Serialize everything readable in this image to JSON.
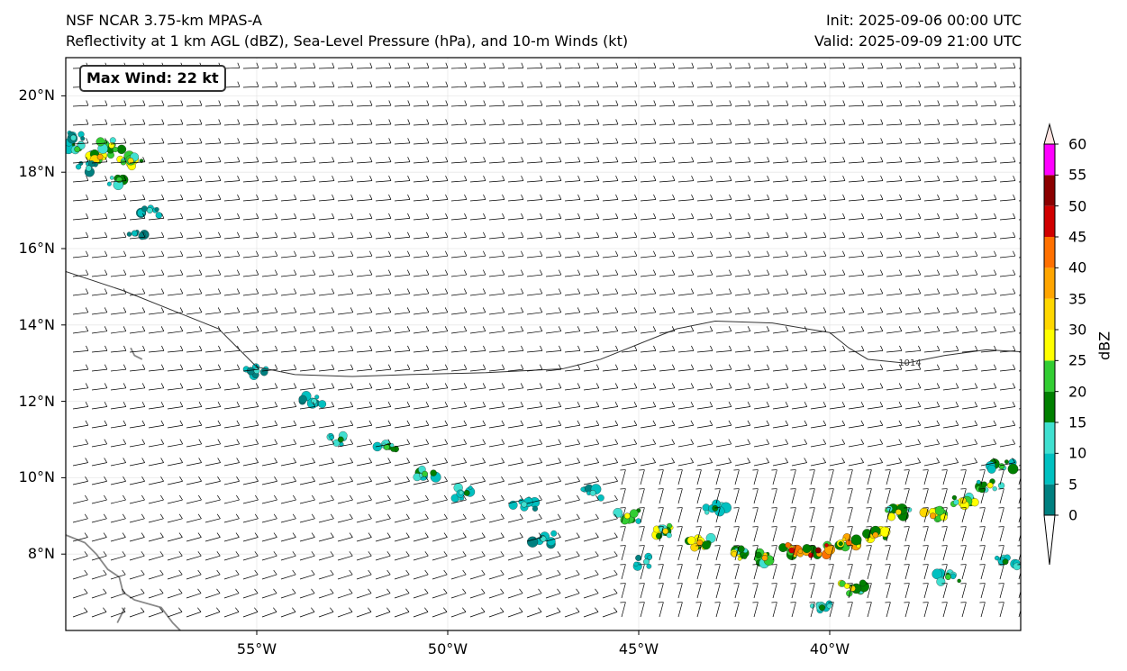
{
  "header": {
    "model": "NSF NCAR 3.75-km MPAS-A",
    "fields": "Reflectivity at 1 km AGL (dBZ), Sea-Level Pressure (hPa), and 10-m Winds (kt)",
    "init": "Init: 2025-09-06 00:00 UTC",
    "valid": "Valid: 2025-09-09 21:00 UTC"
  },
  "annotation": {
    "max_wind": "Max Wind: 22 kt"
  },
  "map": {
    "lon_range": [
      -60,
      -35
    ],
    "lat_range": [
      6,
      21
    ],
    "lat_ticks": [
      {
        "value": 8,
        "label": "8°N"
      },
      {
        "value": 10,
        "label": "10°N"
      },
      {
        "value": 12,
        "label": "12°N"
      },
      {
        "value": 14,
        "label": "14°N"
      },
      {
        "value": 16,
        "label": "16°N"
      },
      {
        "value": 18,
        "label": "18°N"
      },
      {
        "value": 20,
        "label": "20°N"
      }
    ],
    "lon_ticks": [
      {
        "value": -55,
        "label": "55°W"
      },
      {
        "value": -50,
        "label": "50°W"
      },
      {
        "value": -45,
        "label": "45°W"
      },
      {
        "value": -40,
        "label": "40°W"
      }
    ],
    "isobars": [
      {
        "label": "1014",
        "label_point": [
          -37.9,
          13.0
        ],
        "points": [
          [
            -60,
            15.4
          ],
          [
            -58.5,
            14.9
          ],
          [
            -57,
            14.3
          ],
          [
            -56,
            13.9
          ],
          [
            -55.4,
            13.3
          ],
          [
            -55,
            12.9
          ],
          [
            -54,
            12.7
          ],
          [
            -52.5,
            12.65
          ],
          [
            -51,
            12.7
          ],
          [
            -49,
            12.75
          ],
          [
            -47,
            12.85
          ],
          [
            -46,
            13.1
          ],
          [
            -45,
            13.5
          ],
          [
            -44,
            13.9
          ],
          [
            -43,
            14.1
          ],
          [
            -41.5,
            14.05
          ],
          [
            -40,
            13.8
          ],
          [
            -39.5,
            13.4
          ],
          [
            -39,
            13.1
          ],
          [
            -38,
            13.0
          ],
          [
            -37,
            13.2
          ],
          [
            -35.9,
            13.35
          ],
          [
            -35,
            13.3
          ]
        ]
      }
    ],
    "coastlines": [
      [
        [
          -60,
          8.5
        ],
        [
          -59.5,
          8.3
        ],
        [
          -59.2,
          8.0
        ],
        [
          -58.9,
          7.6
        ],
        [
          -58.6,
          7.4
        ],
        [
          -58.5,
          7.0
        ],
        [
          -58.2,
          6.8
        ],
        [
          -57.5,
          6.6
        ],
        [
          -57.2,
          6.2
        ],
        [
          -57.0,
          6.0
        ]
      ],
      [
        [
          -58.65,
          6.2
        ],
        [
          -58.45,
          6.6
        ]
      ],
      [
        [
          -58.3,
          13.4
        ],
        [
          -58.2,
          13.2
        ],
        [
          -58.0,
          13.1
        ]
      ]
    ]
  },
  "colorbar": {
    "label": "dBZ",
    "levels": [
      0,
      5,
      10,
      15,
      20,
      25,
      30,
      35,
      40,
      45,
      50,
      55,
      60
    ],
    "tick_labels": [
      "0",
      "5",
      "10",
      "15",
      "20",
      "25",
      "30",
      "35",
      "40",
      "45",
      "50",
      "55",
      "60"
    ],
    "colors": [
      "#008080",
      "#00c0c0",
      "#40e0d0",
      "#008000",
      "#32cd32",
      "#ffff00",
      "#ffd700",
      "#ffa500",
      "#ff7000",
      "#d00000",
      "#8b0000",
      "#ff00ff",
      "#ffe4e1"
    ]
  },
  "reflectivity_cells": [
    {
      "lon": -59.7,
      "lat": 18.6,
      "dbz": 20
    },
    {
      "lon": -59.1,
      "lat": 18.4,
      "dbz": 35
    },
    {
      "lon": -58.8,
      "lat": 18.7,
      "dbz": 25
    },
    {
      "lon": -59.4,
      "lat": 18.1,
      "dbz": 10
    },
    {
      "lon": -58.6,
      "lat": 17.8,
      "dbz": 20
    },
    {
      "lon": -58.3,
      "lat": 18.3,
      "dbz": 30
    },
    {
      "lon": -59.8,
      "lat": 18.9,
      "dbz": 10
    },
    {
      "lon": -57.8,
      "lat": 17.0,
      "dbz": 10
    },
    {
      "lon": -58.2,
      "lat": 16.4,
      "dbz": 5
    },
    {
      "lon": -55.0,
      "lat": 12.8,
      "dbz": 10
    },
    {
      "lon": -53.5,
      "lat": 12.0,
      "dbz": 10
    },
    {
      "lon": -52.8,
      "lat": 11.0,
      "dbz": 15
    },
    {
      "lon": -51.6,
      "lat": 10.8,
      "dbz": 20
    },
    {
      "lon": -50.6,
      "lat": 10.1,
      "dbz": 20
    },
    {
      "lon": -49.5,
      "lat": 9.6,
      "dbz": 15
    },
    {
      "lon": -48.0,
      "lat": 9.3,
      "dbz": 10
    },
    {
      "lon": -47.5,
      "lat": 8.4,
      "dbz": 10
    },
    {
      "lon": -46.2,
      "lat": 9.6,
      "dbz": 10
    },
    {
      "lon": -45.3,
      "lat": 9.0,
      "dbz": 25
    },
    {
      "lon": -44.3,
      "lat": 8.6,
      "dbz": 30
    },
    {
      "lon": -43.4,
      "lat": 8.3,
      "dbz": 35
    },
    {
      "lon": -42.5,
      "lat": 8.0,
      "dbz": 30
    },
    {
      "lon": -41.7,
      "lat": 7.9,
      "dbz": 35
    },
    {
      "lon": -41.0,
      "lat": 8.1,
      "dbz": 45
    },
    {
      "lon": -40.3,
      "lat": 8.1,
      "dbz": 50
    },
    {
      "lon": -39.5,
      "lat": 8.3,
      "dbz": 40
    },
    {
      "lon": -38.8,
      "lat": 8.5,
      "dbz": 35
    },
    {
      "lon": -38.2,
      "lat": 9.1,
      "dbz": 30
    },
    {
      "lon": -37.3,
      "lat": 9.0,
      "dbz": 35
    },
    {
      "lon": -36.5,
      "lat": 9.4,
      "dbz": 30
    },
    {
      "lon": -35.8,
      "lat": 9.8,
      "dbz": 25
    },
    {
      "lon": -35.5,
      "lat": 10.3,
      "dbz": 20
    },
    {
      "lon": -36.9,
      "lat": 7.4,
      "dbz": 20
    },
    {
      "lon": -39.4,
      "lat": 7.1,
      "dbz": 30
    },
    {
      "lon": -40.2,
      "lat": 6.6,
      "dbz": 15
    },
    {
      "lon": -35.4,
      "lat": 7.8,
      "dbz": 15
    },
    {
      "lon": -43.0,
      "lat": 9.2,
      "dbz": 15
    },
    {
      "lon": -44.8,
      "lat": 7.8,
      "dbz": 10
    }
  ]
}
